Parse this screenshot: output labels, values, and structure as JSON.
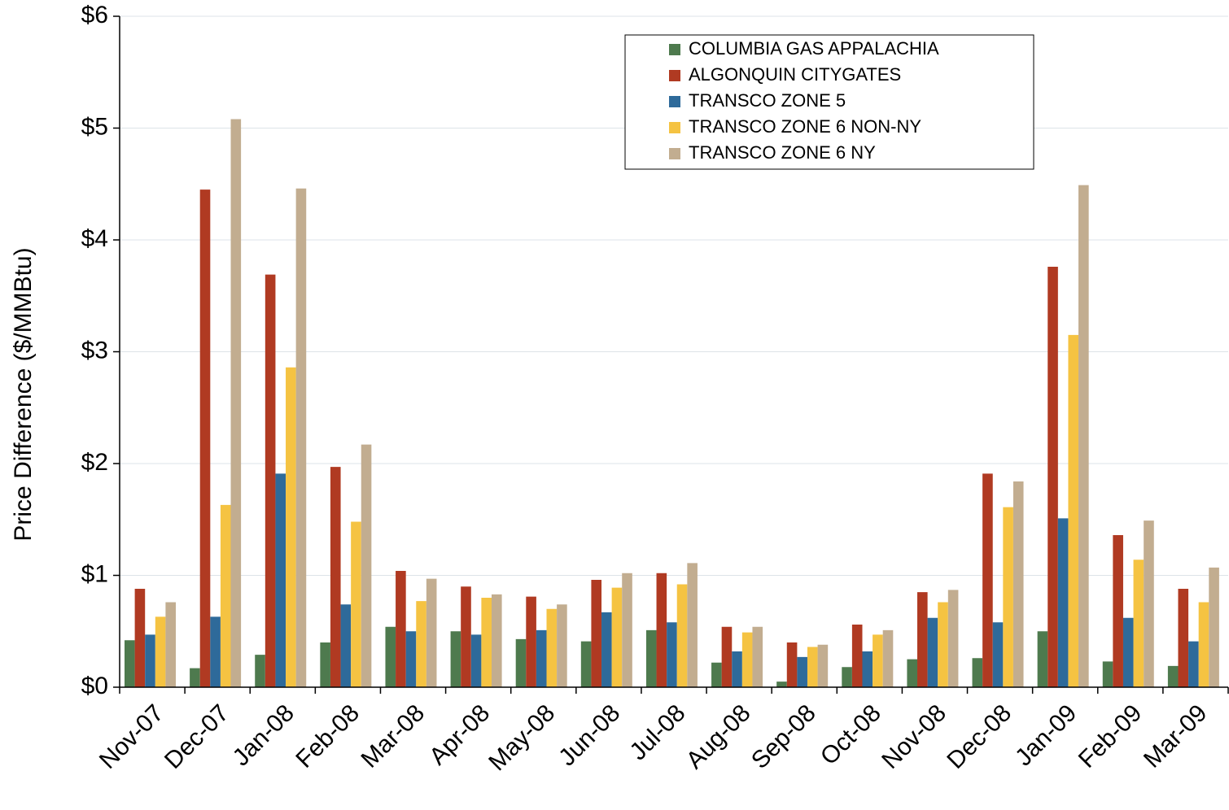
{
  "chart_data": {
    "type": "bar",
    "y_label": "Price Difference  ($/MMBtu)",
    "categories": [
      "Nov-07",
      "Dec-07",
      "Jan-08",
      "Feb-08",
      "Mar-08",
      "Apr-08",
      "May-08",
      "Jun-08",
      "Jul-08",
      "Aug-08",
      "Sep-08",
      "Oct-08",
      "Nov-08",
      "Dec-08",
      "Jan-09",
      "Feb-09",
      "Mar-09"
    ],
    "series": [
      {
        "name": "COLUMBIA GAS APPALACHIA",
        "color": "#4e7a4e",
        "values": [
          0.42,
          0.17,
          0.29,
          0.4,
          0.54,
          0.5,
          0.43,
          0.41,
          0.51,
          0.22,
          0.05,
          0.18,
          0.25,
          0.26,
          0.5,
          0.23,
          0.19
        ]
      },
      {
        "name": "ALGONQUIN CITYGATES",
        "color": "#b03a22",
        "values": [
          0.88,
          4.45,
          3.69,
          1.97,
          1.04,
          0.9,
          0.81,
          0.96,
          1.02,
          0.54,
          0.4,
          0.56,
          0.85,
          1.91,
          3.76,
          1.36,
          0.88
        ]
      },
      {
        "name": "TRANSCO ZONE 5",
        "color": "#2e6a9a",
        "values": [
          0.47,
          0.63,
          1.91,
          0.74,
          0.5,
          0.47,
          0.51,
          0.67,
          0.58,
          0.32,
          0.27,
          0.32,
          0.62,
          0.58,
          1.51,
          0.62,
          0.41
        ]
      },
      {
        "name": "TRANSCO ZONE 6 NON-NY",
        "color": "#f5c342",
        "values": [
          0.63,
          1.63,
          2.86,
          1.48,
          0.77,
          0.8,
          0.7,
          0.89,
          0.92,
          0.49,
          0.36,
          0.47,
          0.76,
          1.61,
          3.15,
          1.14,
          0.76
        ]
      },
      {
        "name": "TRANSCO ZONE 6 NY",
        "color": "#c2ad90",
        "values": [
          0.76,
          5.08,
          4.46,
          2.17,
          0.97,
          0.83,
          0.74,
          1.02,
          1.11,
          0.54,
          0.38,
          0.51,
          0.87,
          1.84,
          4.49,
          1.49,
          1.07
        ]
      }
    ],
    "ylim": [
      0,
      6
    ],
    "yticks": [
      {
        "value": 0,
        "label": "$0"
      },
      {
        "value": 1,
        "label": "$1"
      },
      {
        "value": 2,
        "label": "$2"
      },
      {
        "value": 3,
        "label": "$3"
      },
      {
        "value": 4,
        "label": "$4"
      },
      {
        "value": 5,
        "label": "$5"
      },
      {
        "value": 6,
        "label": "$6"
      }
    ],
    "grid": true,
    "legend_loc": "upper right"
  }
}
